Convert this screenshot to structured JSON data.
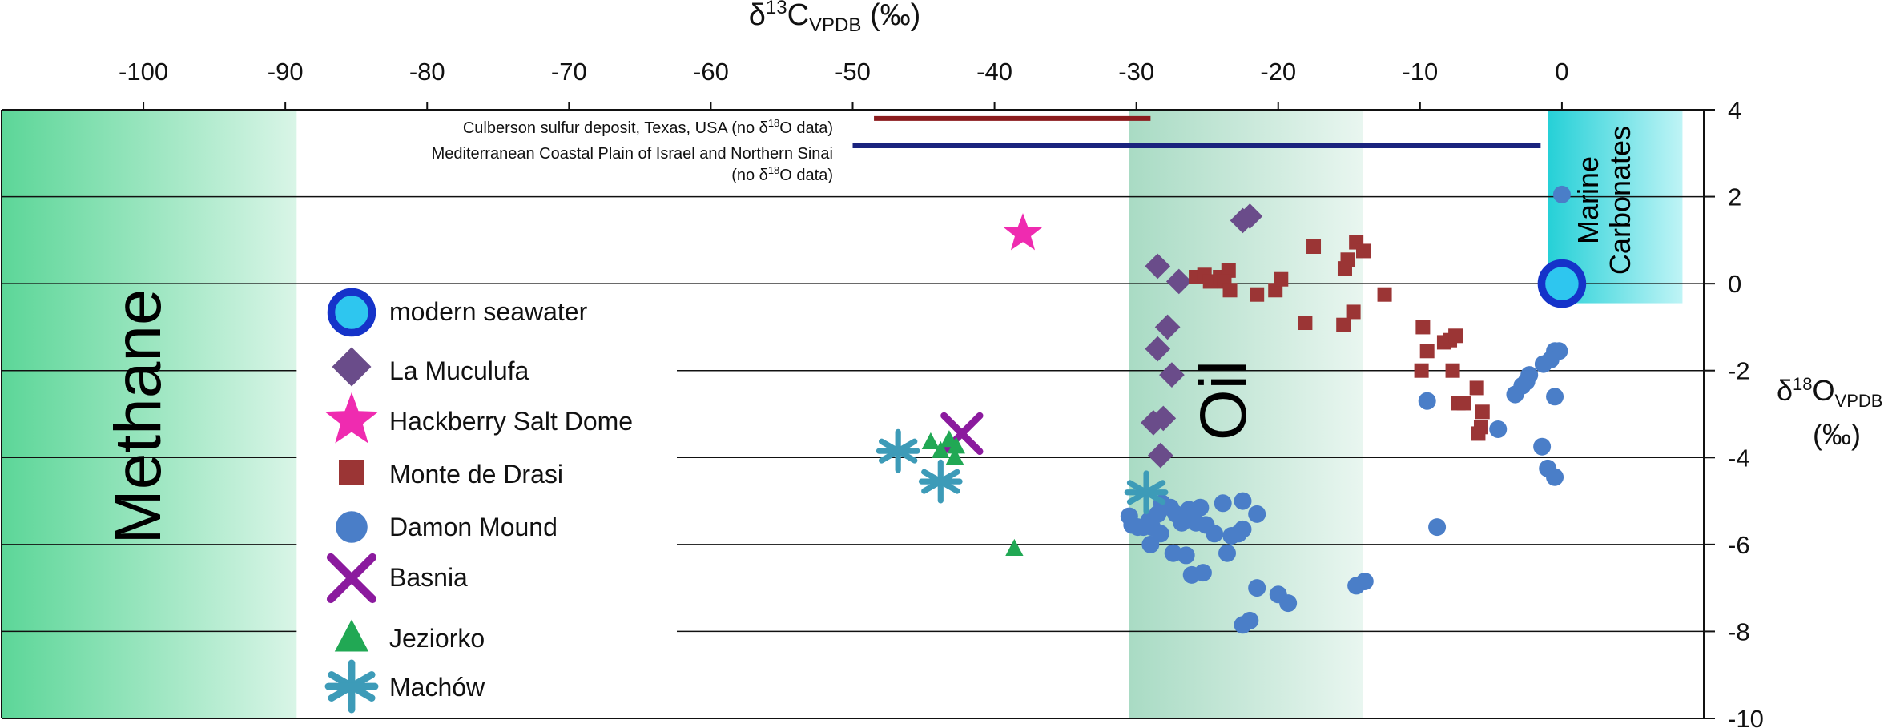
{
  "chart_data": {
    "type": "scatter",
    "x_axis": {
      "label_main": "δ",
      "label_sup": "13",
      "label_mid": "C",
      "label_sub": "VPDB",
      "label_unit": " (‰)",
      "range": [
        -110,
        10
      ],
      "ticks": [
        -100,
        -90,
        -80,
        -70,
        -60,
        -50,
        -40,
        -30,
        -20,
        -10,
        0
      ],
      "tick_labels": [
        "-100",
        "-90",
        "-80",
        "-70",
        "-60",
        "-50",
        "-40",
        "-30",
        "-20",
        "-10",
        "0"
      ]
    },
    "y_axis": {
      "label_main": "δ",
      "label_sup": "18",
      "label_mid": "O",
      "label_sub": "VPDB",
      "label_unit": "(‰)",
      "range": [
        -10,
        4
      ],
      "ticks": [
        4,
        2,
        0,
        -2,
        -4,
        -6,
        -8,
        -10
      ],
      "tick_labels": [
        "4",
        "2",
        "0",
        "-2",
        "-4",
        "-6",
        "-8",
        "-10"
      ],
      "grid": [
        2,
        0,
        -2,
        -4,
        -6,
        -8
      ]
    },
    "regions": [
      {
        "name": "Methane",
        "x_range": [
          -110,
          -89.2
        ],
        "y_range": [
          -10,
          4
        ],
        "color": "#5cd698"
      },
      {
        "name": "Oil",
        "x_range": [
          -30.5,
          -14
        ],
        "y_range": [
          -10,
          4
        ],
        "color": "#a9dbc4"
      },
      {
        "name": "Marine Carbonates",
        "line1": "Marine",
        "line2": "Carbonates",
        "x_range": [
          -1,
          8.5
        ],
        "y_range": [
          -0.45,
          4
        ],
        "color": "#25d0d7"
      }
    ],
    "ranges": [
      {
        "label": "Culberson sulfur deposit, Texas, USA (no δ",
        "label_sup": "18",
        "label_end": "O data)",
        "x": [
          -48.5,
          -29
        ],
        "y": 3.8,
        "color": "#8b1c1e"
      },
      {
        "label": "Mediterranean Coastal Plain of Israel and Northern Sinai",
        "label2": "(no δ",
        "label2_sup": "18",
        "label2_end": "O data)",
        "x": [
          -50,
          -1.5
        ],
        "y": 3.17,
        "color": "#1a237e"
      }
    ],
    "legend_position": "left",
    "series": [
      {
        "name": "modern seawater",
        "marker": "circle-open",
        "color": "#1a9fe0",
        "points": [
          [
            0,
            0
          ]
        ]
      },
      {
        "name": "La Muculufa",
        "marker": "diamond",
        "color": "#6a4c8a",
        "points": [
          [
            -28.5,
            0.4
          ],
          [
            -27,
            0.05
          ],
          [
            -22.5,
            1.45
          ],
          [
            -22,
            1.55
          ],
          [
            -27.8,
            -1
          ],
          [
            -28.5,
            -1.5
          ],
          [
            -27.5,
            -2.1
          ],
          [
            -28.8,
            -3.2
          ],
          [
            -28.1,
            -3.1
          ],
          [
            -28.3,
            -3.95
          ]
        ]
      },
      {
        "name": "Hackberry Salt Dome",
        "marker": "star",
        "color": "#ef2bb0",
        "points": [
          [
            -38,
            1.15
          ]
        ]
      },
      {
        "name": "Monte de Drasi",
        "marker": "square",
        "color": "#9b3535",
        "points": [
          [
            -25.8,
            0.15
          ],
          [
            -25.2,
            0.2
          ],
          [
            -24.8,
            0.05
          ],
          [
            -24.1,
            0.15
          ],
          [
            -23.5,
            0.3
          ],
          [
            -23.8,
            0.05
          ],
          [
            -23.4,
            -0.15
          ],
          [
            -21.5,
            -0.25
          ],
          [
            -20.2,
            -0.15
          ],
          [
            -19.8,
            0.1
          ],
          [
            -17.5,
            0.85
          ],
          [
            -15.3,
            0.35
          ],
          [
            -15.1,
            0.55
          ],
          [
            -14.5,
            0.95
          ],
          [
            -14,
            0.75
          ],
          [
            -12.5,
            -0.25
          ],
          [
            -18.1,
            -0.9
          ],
          [
            -14.7,
            -0.65
          ],
          [
            -15.4,
            -0.95
          ],
          [
            -9.8,
            -1
          ],
          [
            -9.5,
            -1.55
          ],
          [
            -8.3,
            -1.35
          ],
          [
            -7.9,
            -1.3
          ],
          [
            -7.5,
            -1.2
          ],
          [
            -9.9,
            -2
          ],
          [
            -7.7,
            -2
          ],
          [
            -7.3,
            -2.75
          ],
          [
            -6.9,
            -2.75
          ],
          [
            -6,
            -2.4
          ],
          [
            -5.6,
            -2.95
          ],
          [
            -5.7,
            -3.3
          ],
          [
            -5.9,
            -3.45
          ]
        ]
      },
      {
        "name": "Damon Mound",
        "marker": "circle",
        "color": "#4a7ec8",
        "points": [
          [
            0,
            2.05
          ],
          [
            -0.5,
            -1.55
          ],
          [
            -0.2,
            -1.55
          ],
          [
            -0.8,
            -1.75
          ],
          [
            -1.3,
            -1.85
          ],
          [
            -2.3,
            -2.1
          ],
          [
            -2.5,
            -2.25
          ],
          [
            -2.8,
            -2.35
          ],
          [
            -3.3,
            -2.55
          ],
          [
            -4.5,
            -3.35
          ],
          [
            -0.5,
            -2.6
          ],
          [
            -1.4,
            -3.75
          ],
          [
            -1,
            -4.25
          ],
          [
            -0.5,
            -4.45
          ],
          [
            -9.5,
            -2.7
          ],
          [
            -8.8,
            -5.6
          ],
          [
            -30.5,
            -5.35
          ],
          [
            -30.3,
            -5.55
          ],
          [
            -29.9,
            -5.6
          ],
          [
            -29.5,
            -5.6
          ],
          [
            -29.1,
            -5.45
          ],
          [
            -28.5,
            -5.3
          ],
          [
            -28.9,
            -5.6
          ],
          [
            -27.2,
            -5.3
          ],
          [
            -26.8,
            -5.5
          ],
          [
            -25.8,
            -5.5
          ],
          [
            -25.1,
            -5.55
          ],
          [
            -24.5,
            -5.75
          ],
          [
            -23.3,
            -5.8
          ],
          [
            -22.8,
            -5.75
          ],
          [
            -22.5,
            -5.65
          ],
          [
            -21.5,
            -5.3
          ],
          [
            -23.9,
            -5.05
          ],
          [
            -25.5,
            -5.15
          ],
          [
            -26.3,
            -5.2
          ],
          [
            -27.6,
            -5.15
          ],
          [
            -28.2,
            -5.05
          ],
          [
            -22.5,
            -5
          ],
          [
            -28.3,
            -5.75
          ],
          [
            -29,
            -6
          ],
          [
            -27.4,
            -6.2
          ],
          [
            -26.5,
            -6.25
          ],
          [
            -26.1,
            -6.7
          ],
          [
            -25.3,
            -6.65
          ],
          [
            -23.6,
            -6.2
          ],
          [
            -21.5,
            -7
          ],
          [
            -20,
            -7.15
          ],
          [
            -19.3,
            -7.35
          ],
          [
            -14.5,
            -6.95
          ],
          [
            -13.9,
            -6.85
          ],
          [
            -22.5,
            -7.85
          ],
          [
            -22,
            -7.75
          ]
        ]
      },
      {
        "name": "Basnia",
        "marker": "x",
        "color": "#8b1a9e",
        "points": [
          [
            -42.3,
            -3.45
          ]
        ]
      },
      {
        "name": "Jeziorko",
        "marker": "triangle",
        "color": "#21a854",
        "points": [
          [
            -44.5,
            -3.65
          ],
          [
            -43.2,
            -3.6
          ],
          [
            -42.7,
            -3.75
          ],
          [
            -43.8,
            -3.85
          ],
          [
            -42.8,
            -4
          ],
          [
            -38.6,
            -6.1
          ]
        ]
      },
      {
        "name": "Machów",
        "marker": "asterisk",
        "color": "#3d9bb8",
        "points": [
          [
            -46.8,
            -3.85
          ],
          [
            -43.8,
            -4.55
          ],
          [
            -29.3,
            -4.8
          ]
        ]
      }
    ]
  }
}
